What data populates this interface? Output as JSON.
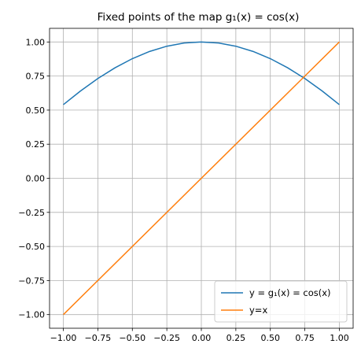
{
  "chart_data": {
    "type": "line",
    "title": "Fixed points of the map g₁(x) = cos(x)",
    "xlim": [
      -1.1,
      1.1
    ],
    "ylim": [
      -1.1,
      1.1
    ],
    "grid": true,
    "legend_position": "lower-right",
    "x_ticks": [
      -1.0,
      -0.75,
      -0.5,
      -0.25,
      0.0,
      0.25,
      0.5,
      0.75,
      1.0
    ],
    "x_tick_labels": [
      "−1.00",
      "−0.75",
      "−0.50",
      "−0.25",
      "0.00",
      "0.25",
      "0.50",
      "0.75",
      "1.00"
    ],
    "y_ticks": [
      -1.0,
      -0.75,
      -0.5,
      -0.25,
      0.0,
      0.25,
      0.5,
      0.75,
      1.0
    ],
    "y_tick_labels": [
      "−1.00",
      "−0.75",
      "−0.50",
      "−0.25",
      "0.00",
      "0.25",
      "0.50",
      "0.75",
      "1.00"
    ],
    "series": [
      {
        "name": "y = g₁(x) = cos(x)",
        "color": "#1f77b4",
        "x": [
          -1.0,
          -0.875,
          -0.75,
          -0.625,
          -0.5,
          -0.375,
          -0.25,
          -0.125,
          0.0,
          0.125,
          0.25,
          0.375,
          0.5,
          0.625,
          0.75,
          0.875,
          1.0
        ],
        "y": [
          0.5403,
          0.641,
          0.7317,
          0.8109,
          0.8776,
          0.9305,
          0.9689,
          0.9922,
          1.0,
          0.9922,
          0.9689,
          0.9305,
          0.8776,
          0.8109,
          0.7317,
          0.641,
          0.5403
        ]
      },
      {
        "name": "y=x",
        "color": "#ff7f0e",
        "x": [
          -1.0,
          1.0
        ],
        "y": [
          -1.0,
          1.0
        ]
      }
    ]
  }
}
